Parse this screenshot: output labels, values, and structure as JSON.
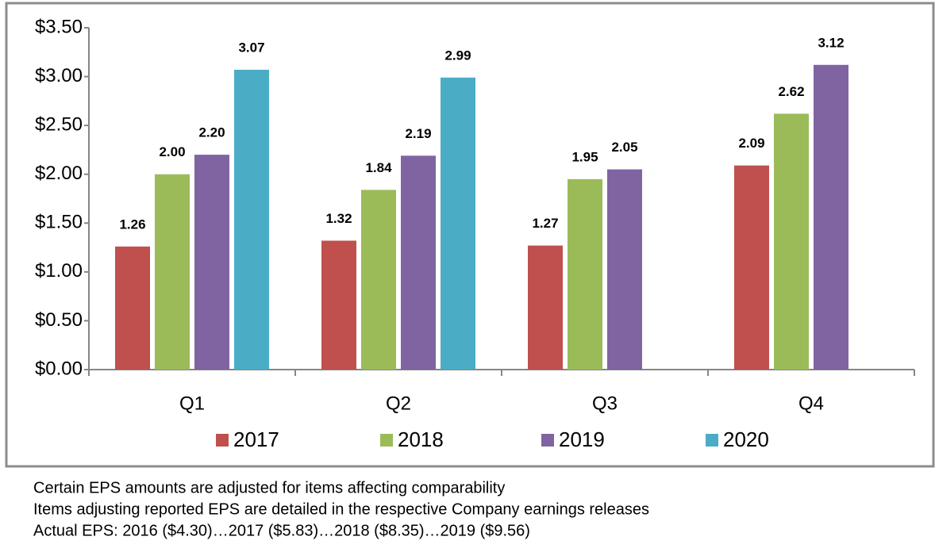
{
  "chart_data": {
    "type": "bar",
    "categories": [
      "Q1",
      "Q2",
      "Q3",
      "Q4"
    ],
    "series": [
      {
        "name": "2017",
        "color": "#c0504d",
        "values": [
          1.26,
          1.32,
          1.27,
          2.09
        ],
        "value_labels": [
          "1.26",
          "1.32",
          "1.27",
          "2.09"
        ]
      },
      {
        "name": "2018",
        "color": "#9bbb59",
        "values": [
          2.0,
          1.84,
          1.95,
          2.62
        ],
        "value_labels": [
          "2.00",
          "1.84",
          "1.95",
          "2.62"
        ]
      },
      {
        "name": "2019",
        "color": "#8064a2",
        "values": [
          2.2,
          2.19,
          2.05,
          3.12
        ],
        "value_labels": [
          "2.20",
          "2.19",
          "2.05",
          "3.12"
        ]
      },
      {
        "name": "2020",
        "color": "#4bacc6",
        "values": [
          3.07,
          2.99,
          null,
          null
        ],
        "value_labels": [
          "3.07",
          "2.99",
          null,
          null
        ]
      }
    ],
    "ylim": [
      0,
      3.5
    ],
    "yticks": [
      {
        "value": 0,
        "label": "$0.00"
      },
      {
        "value": 0.5,
        "label": "$0.50"
      },
      {
        "value": 1,
        "label": "$1.00"
      },
      {
        "value": 1.5,
        "label": "$1.50"
      },
      {
        "value": 2,
        "label": "$2.00"
      },
      {
        "value": 2.5,
        "label": "$2.50"
      },
      {
        "value": 3,
        "label": "$3.00"
      },
      {
        "value": 3.5,
        "label": "$3.50"
      }
    ],
    "legend": "bottom",
    "notes": [
      "Certain EPS amounts are adjusted for items affecting comparability",
      "Items adjusting reported EPS are detailed in the respective Company earnings releases",
      "Actual EPS: 2016 ($4.30)…2017 ($5.83)…2018 ($8.35)…2019 ($9.56)"
    ]
  }
}
